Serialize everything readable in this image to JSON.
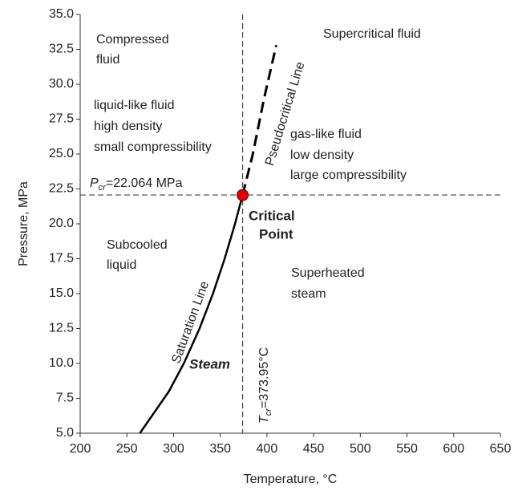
{
  "chart_data": {
    "type": "line",
    "x_label": "Temperature, °C",
    "y_label": "Pressure, MPa",
    "xlim": [
      200,
      650
    ],
    "ylim": [
      5,
      35
    ],
    "xticks": [
      200,
      250,
      300,
      350,
      400,
      450,
      500,
      550,
      600,
      650
    ],
    "yticks": [
      {
        "value": 5,
        "label": "5.0"
      },
      7.5,
      {
        "value": 10,
        "label": "10.0"
      },
      12.5,
      {
        "value": 15,
        "label": "15.0"
      },
      17.5,
      {
        "value": 20,
        "label": "20.0"
      },
      22.5,
      {
        "value": 25,
        "label": "25.0"
      },
      27.5,
      {
        "value": 30,
        "label": "30.0"
      },
      32.5,
      {
        "value": 35,
        "label": "35.0"
      }
    ],
    "grid": false,
    "series": [
      {
        "name": "Saturation Line",
        "color": "#000000",
        "linestyle": "solid",
        "x": [
          263.94,
          295.0,
          311.0,
          327.8,
          342.2,
          354.7,
          365.8,
          373.95
        ],
        "values": [
          5,
          8,
          10,
          12.5,
          15,
          17.5,
          20,
          22.064
        ]
      },
      {
        "name": "Pseudocritical Line",
        "color": "#000000",
        "linestyle": "dashed",
        "x": [
          373.95,
          384.9,
          397,
          410
        ],
        "values": [
          22.064,
          25,
          29,
          32.8
        ]
      }
    ],
    "critical_point": {
      "x": 373.95,
      "y": 22.064,
      "color": "#e00000"
    },
    "pcr_label": {
      "symbol": "P",
      "subscript": "cr",
      "text": "=22.064 MPa"
    },
    "tcr_label": {
      "symbol": "T",
      "subscript": "cr",
      "text": "=373.95°C"
    },
    "annotations": {
      "compressed_fluid": [
        "Compressed",
        "fluid"
      ],
      "supercritical_fluid": "Supercritical fluid",
      "liquid_like": [
        "liquid-like fluid",
        "high density",
        "small compressibility"
      ],
      "gas_like": [
        "gas-like fluid",
        "low density",
        "large compressibility"
      ],
      "critical_point": [
        "Critical",
        "Point"
      ],
      "subcooled": [
        "Subcooled",
        "liquid"
      ],
      "superheated": [
        "Superheated",
        "steam"
      ],
      "steam": "Steam"
    }
  }
}
